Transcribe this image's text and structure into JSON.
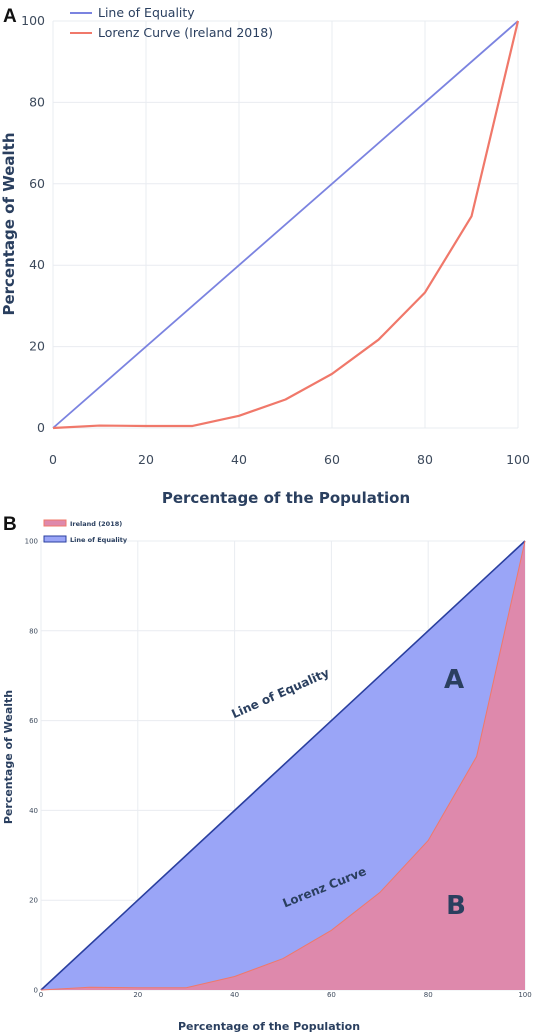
{
  "panel_a": {
    "letter": "A",
    "legend": [
      "Line of Equality",
      "Lorenz Curve (Ireland 2018)"
    ]
  },
  "panel_b": {
    "letter": "B",
    "legend": [
      "Ireland (2018)",
      "Line of Equality"
    ],
    "region_a": "A",
    "region_b": "B",
    "label_equality": "Line of Equality",
    "label_lorenz": "Lorenz Curve"
  },
  "colors": {
    "equality_line": "#7b83e0",
    "lorenz_line": "#f0786a",
    "equality_fill": "#9aa5f7",
    "lorenz_fill": "#de89ac",
    "axis_title": "#2a3f5f"
  },
  "chart_data": [
    {
      "type": "line",
      "title": "",
      "xlabel": "Percentage of the Population",
      "ylabel": "Percentage of Wealth",
      "xlim": [
        0,
        100
      ],
      "ylim": [
        0,
        100
      ],
      "xticks": [
        0,
        20,
        40,
        60,
        80,
        100
      ],
      "yticks": [
        0,
        20,
        40,
        60,
        80,
        100
      ],
      "grid": true,
      "legend_position": "top-left",
      "series": [
        {
          "name": "Line of Equality",
          "x": [
            0,
            100
          ],
          "y": [
            0,
            100
          ]
        },
        {
          "name": "Lorenz Curve (Ireland 2018)",
          "x": [
            0,
            10,
            20,
            30,
            40,
            50,
            60,
            70,
            80,
            90,
            100
          ],
          "y": [
            0,
            0.6,
            0.5,
            0.5,
            3,
            7,
            13.3,
            21.7,
            33.3,
            52,
            100
          ]
        }
      ]
    },
    {
      "type": "area",
      "title": "",
      "xlabel": "Percentage of the Population",
      "ylabel": "Percentage of Wealth",
      "xlim": [
        0,
        100
      ],
      "ylim": [
        0,
        100
      ],
      "xticks": [
        0,
        20,
        40,
        60,
        80,
        100
      ],
      "yticks": [
        0,
        20,
        40,
        60,
        80,
        100
      ],
      "grid": true,
      "legend_position": "top-left",
      "series": [
        {
          "name": "Ireland (2018)",
          "x": [
            0,
            10,
            20,
            30,
            40,
            50,
            60,
            70,
            80,
            90,
            100
          ],
          "y": [
            0,
            0.6,
            0.5,
            0.5,
            3,
            7,
            13.3,
            21.7,
            33.3,
            52,
            100
          ]
        },
        {
          "name": "Line of Equality",
          "x": [
            0,
            100
          ],
          "y": [
            0,
            100
          ]
        }
      ]
    }
  ]
}
